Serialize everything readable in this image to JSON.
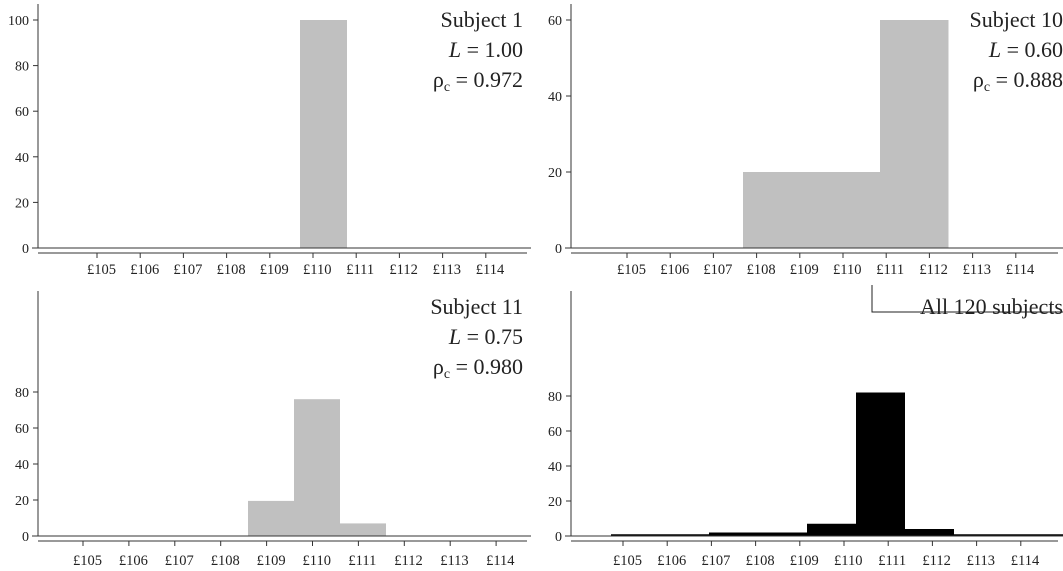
{
  "charts": [
    {
      "name": "subject-1",
      "type": "bar",
      "categories": [
        "£105",
        "£106",
        "£107",
        "£108",
        "£109",
        "£110",
        "£111",
        "£112",
        "£113",
        "£114"
      ],
      "values": [
        0,
        0,
        0,
        0,
        0,
        100,
        0,
        0,
        0,
        0
      ],
      "ylim": [
        0,
        100
      ],
      "yticks": [
        "0",
        "20",
        "40",
        "60",
        "80",
        "100"
      ],
      "bar_color": "#c0c0c0",
      "annotation": [
        "Subject 1",
        "L = 1.00",
        "ρc = 0.972"
      ]
    },
    {
      "name": "subject-10",
      "type": "bar",
      "categories": [
        "£105",
        "£106",
        "£107",
        "£108",
        "£109",
        "£110",
        "£111",
        "£112",
        "£113",
        "£114"
      ],
      "values": [
        0,
        0,
        0,
        20,
        20,
        60,
        0,
        0,
        0,
        0
      ],
      "ylim": [
        0,
        60
      ],
      "yticks": [
        "0",
        "20",
        "40",
        "60"
      ],
      "bar_color": "#c0c0c0",
      "annotation": [
        "Subject 10",
        "L = 0.60",
        "ρc = 0.888"
      ]
    },
    {
      "name": "subject-11",
      "type": "bar",
      "categories": [
        "£105",
        "£106",
        "£107",
        "£108",
        "£109",
        "£110",
        "£111",
        "£112",
        "£113",
        "£114"
      ],
      "values": [
        0,
        0,
        0,
        0,
        19.5,
        76,
        7,
        0,
        0,
        0
      ],
      "ylim": [
        0,
        80
      ],
      "yticks": [
        "0",
        "20",
        "40",
        "60",
        "80"
      ],
      "bar_color": "#c0c0c0",
      "annotation": [
        "Subject 11",
        "L = 0.75",
        "ρc = 0.980"
      ]
    },
    {
      "name": "all-subjects",
      "type": "bar",
      "categories": [
        "£105",
        "£106",
        "£107",
        "£108",
        "£109",
        "£110",
        "£111",
        "£112",
        "£113",
        "£114"
      ],
      "values": [
        1,
        1,
        2,
        2,
        7,
        82,
        4,
        1,
        1,
        1
      ],
      "ylim": [
        0,
        80
      ],
      "yticks": [
        "0",
        "20",
        "40",
        "60",
        "80"
      ],
      "bar_color": "#000000",
      "annotation": [
        "All 120 subjects"
      ]
    }
  ]
}
